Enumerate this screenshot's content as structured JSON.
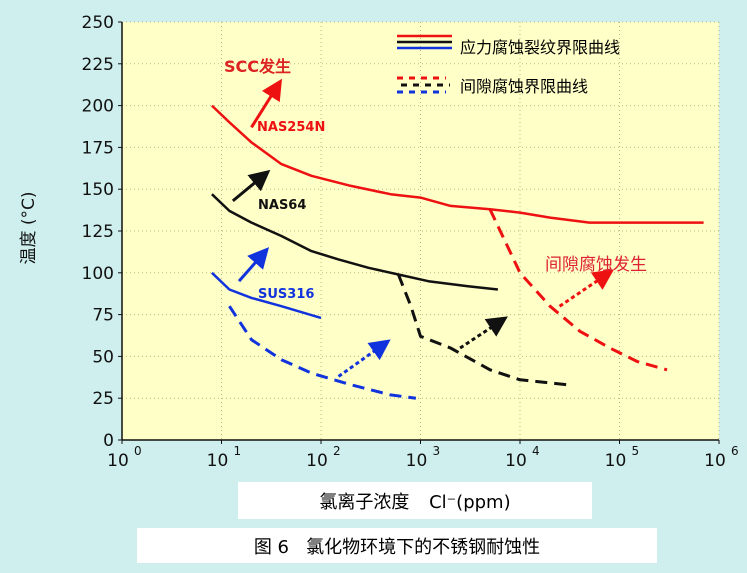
{
  "figure_caption": "图 6   氯化物环境下的不锈钢耐蚀性",
  "colors": {
    "page_bg": "#cfeeee",
    "plot_bg": "#ffffc8",
    "grid": "#b9b984",
    "axis": "#111111",
    "red": "#ee1111",
    "black": "#111111",
    "blue": "#1133dd",
    "ssc_label": "#dd2222",
    "crevice_label": "#dd2233"
  },
  "chart_data": {
    "type": "line",
    "title": "",
    "xlabel_main": "氯离子浓度",
    "xlabel_unit": "Cl⁻(ppm)",
    "ylabel": "温度 (°C)",
    "x_scale": "log",
    "xlim": [
      1,
      1000000
    ],
    "ylim": [
      0,
      250
    ],
    "grid": true,
    "x_tick_labels": [
      {
        "base": "10",
        "exp": "0"
      },
      {
        "base": "10",
        "exp": "1"
      },
      {
        "base": "10",
        "exp": "2"
      },
      {
        "base": "10",
        "exp": "3"
      },
      {
        "base": "10",
        "exp": "4"
      },
      {
        "base": "10",
        "exp": "5"
      },
      {
        "base": "10",
        "exp": "6"
      }
    ],
    "y_ticks": [
      "0",
      "25",
      "50",
      "75",
      "100",
      "125",
      "150",
      "175",
      "200",
      "225",
      "250"
    ],
    "legend": [
      {
        "label": "应力腐蚀裂纹界限曲线",
        "style": "solid"
      },
      {
        "label": "间隙腐蚀界限曲线",
        "style": "dashed"
      }
    ],
    "series": [
      {
        "name": "NAS254N",
        "kind": "stress_corrosion",
        "color": "red",
        "points": [
          [
            8,
            200
          ],
          [
            12,
            190
          ],
          [
            20,
            178
          ],
          [
            40,
            165
          ],
          [
            80,
            158
          ],
          [
            200,
            152
          ],
          [
            500,
            147
          ],
          [
            1000,
            145
          ],
          [
            2000,
            140
          ],
          [
            5000,
            138
          ],
          [
            10000,
            136
          ],
          [
            20000,
            133
          ],
          [
            50000,
            130
          ],
          [
            100000,
            130
          ],
          [
            300000,
            130
          ],
          [
            700000,
            130
          ]
        ]
      },
      {
        "name": "NAS64",
        "kind": "stress_corrosion",
        "color": "black",
        "points": [
          [
            8,
            147
          ],
          [
            12,
            137
          ],
          [
            20,
            130
          ],
          [
            40,
            122
          ],
          [
            80,
            113
          ],
          [
            150,
            108
          ],
          [
            300,
            103
          ],
          [
            600,
            99
          ],
          [
            1200,
            95
          ],
          [
            3000,
            92
          ],
          [
            6000,
            90
          ]
        ]
      },
      {
        "name": "SUS316",
        "kind": "stress_corrosion",
        "color": "blue",
        "points": [
          [
            8,
            100
          ],
          [
            12,
            90
          ],
          [
            20,
            85
          ],
          [
            40,
            80
          ],
          [
            100,
            73
          ]
        ]
      },
      {
        "name": "NAS254N",
        "kind": "crevice_corrosion",
        "color": "red",
        "points": [
          [
            5000,
            138
          ],
          [
            10000,
            100
          ],
          [
            20000,
            80
          ],
          [
            40000,
            65
          ],
          [
            80000,
            55
          ],
          [
            150000,
            47
          ],
          [
            300000,
            42
          ]
        ]
      },
      {
        "name": "NAS64",
        "kind": "crevice_corrosion",
        "color": "black",
        "points": [
          [
            600,
            99
          ],
          [
            800,
            80
          ],
          [
            1000,
            62
          ],
          [
            2000,
            55
          ],
          [
            5000,
            42
          ],
          [
            10000,
            36
          ],
          [
            30000,
            33
          ]
        ]
      },
      {
        "name": "SUS316",
        "kind": "crevice_corrosion",
        "color": "blue",
        "points": [
          [
            12,
            80
          ],
          [
            20,
            60
          ],
          [
            40,
            48
          ],
          [
            80,
            40
          ],
          [
            200,
            33
          ],
          [
            500,
            27
          ],
          [
            900,
            25
          ]
        ]
      }
    ],
    "annotations": [
      {
        "text": "SCC发生",
        "color": "red"
      },
      {
        "text": "间隙腐蚀发生",
        "color": "red"
      }
    ]
  }
}
